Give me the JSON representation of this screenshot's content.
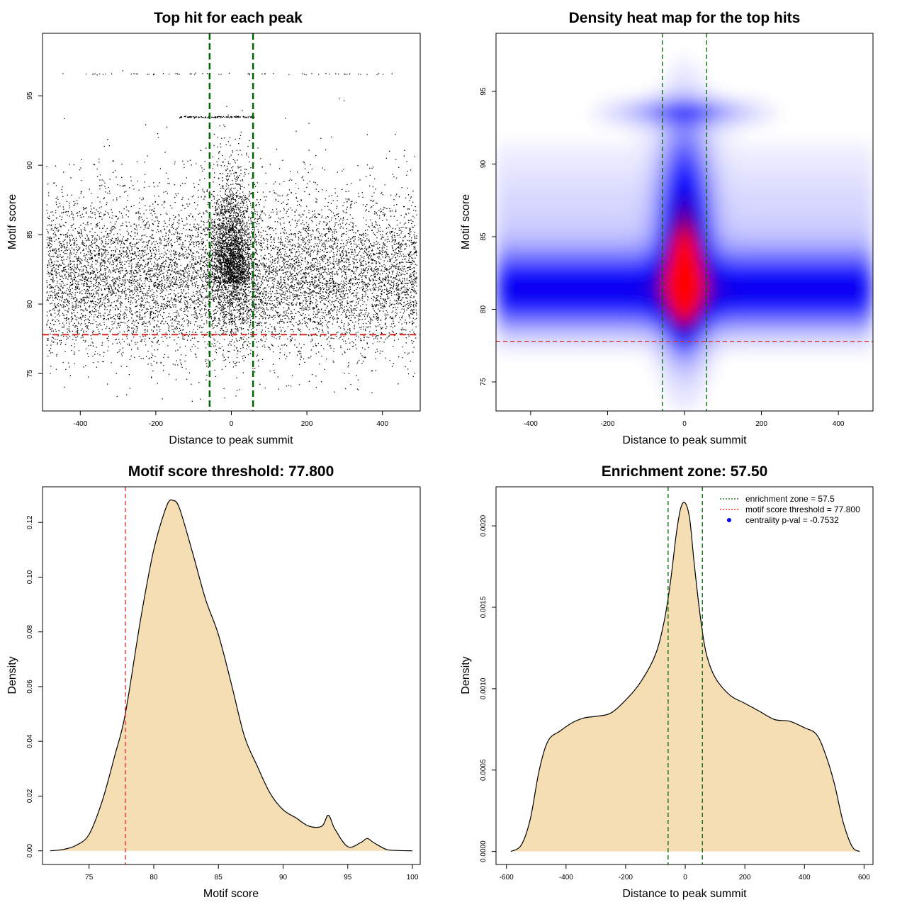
{
  "figure": {
    "panels": [
      {
        "id": "scatter",
        "title": "Top hit for each peak",
        "xlabel": "Distance to peak summit",
        "ylabel": "Motif score"
      },
      {
        "id": "heatmap",
        "title": "Density heat map for the top hits",
        "xlabel": "Distance to peak summit",
        "ylabel": "Motif score"
      },
      {
        "id": "score_density",
        "title": "Motif score threshold: 77.800",
        "xlabel": "Motif score",
        "ylabel": "Density"
      },
      {
        "id": "dist_density",
        "title": "Enrichment zone: 57.50",
        "xlabel": "Distance to peak summit",
        "ylabel": "Density"
      }
    ],
    "legend": [
      {
        "label": "enrichment zone = 57.5",
        "color": "#006400",
        "style": "dotted-line"
      },
      {
        "label": "motif score threshold = 77.800",
        "color": "#ff0000",
        "style": "dotted-line"
      },
      {
        "label": "centrality p-val = -0.7532",
        "color": "#0000ff",
        "style": "point"
      }
    ]
  },
  "chart_data": [
    {
      "type": "scatter",
      "title": "Top hit for each peak",
      "xlabel": "Distance to peak summit",
      "ylabel": "Motif score",
      "xlim": [
        -500,
        500
      ],
      "ylim": [
        72.3,
        99.5
      ],
      "xticks": [
        "-400",
        "-200",
        "0",
        "200",
        "400"
      ],
      "yticks": [
        "75",
        "80",
        "85",
        "90",
        "95"
      ],
      "xtick_values": [
        -400,
        -200,
        0,
        200,
        400
      ],
      "ytick_values": [
        75,
        80,
        85,
        90,
        95
      ],
      "vlines": {
        "values": [
          -57.5,
          57.5
        ],
        "color": "#006400"
      },
      "hline": {
        "value": 77.8,
        "color": "#dd2222"
      },
      "point_color": "#000000",
      "approx_points": 12000
    },
    {
      "type": "heatmap",
      "title": "Density heat map for the top hits",
      "xlabel": "Distance to peak summit",
      "ylabel": "Motif score",
      "xlim": [
        -490,
        490
      ],
      "ylim": [
        73,
        99
      ],
      "xticks": [
        "-400",
        "-200",
        "0",
        "200",
        "400"
      ],
      "yticks": [
        "75",
        "80",
        "85",
        "90",
        "95"
      ],
      "xtick_values": [
        -400,
        -200,
        0,
        200,
        400
      ],
      "ytick_values": [
        75,
        80,
        85,
        90,
        95
      ],
      "vlines": {
        "values": [
          -57.5,
          57.5
        ],
        "color": "#006400"
      },
      "hline": {
        "value": 77.8,
        "color": "#dd2222"
      },
      "colors": {
        "low": "#ffffff",
        "mid": "#0000ff",
        "high": "#ff0000"
      },
      "peak": {
        "x": 0,
        "y": 82
      }
    },
    {
      "type": "area",
      "title": "Motif score threshold: 77.800",
      "xlabel": "Motif score",
      "ylabel": "Density",
      "xlim": [
        71.4,
        100.6
      ],
      "ylim": [
        -0.005,
        0.133
      ],
      "xticks": [
        "75",
        "80",
        "85",
        "90",
        "95",
        "100"
      ],
      "yticks": [
        "0.00",
        "0.02",
        "0.04",
        "0.06",
        "0.08",
        "0.10",
        "0.12"
      ],
      "xtick_values": [
        75,
        80,
        85,
        90,
        95,
        100
      ],
      "ytick_values": [
        0,
        0.02,
        0.04,
        0.06,
        0.08,
        0.1,
        0.12
      ],
      "fill": "#f5deb3",
      "vline": {
        "value": 77.8,
        "color": "#dd2222"
      },
      "x": [
        72,
        73,
        74,
        75,
        76,
        77,
        77.8,
        79,
        80,
        81,
        81.5,
        82,
        83,
        84,
        85,
        86,
        87,
        88,
        89,
        90,
        91,
        92,
        93,
        93.5,
        94,
        95,
        96,
        96.5,
        97,
        98,
        99,
        100
      ],
      "y": [
        0,
        0.0005,
        0.002,
        0.006,
        0.018,
        0.035,
        0.05,
        0.085,
        0.11,
        0.126,
        0.128,
        0.125,
        0.109,
        0.092,
        0.079,
        0.061,
        0.042,
        0.031,
        0.021,
        0.015,
        0.012,
        0.009,
        0.009,
        0.013,
        0.008,
        0.0015,
        0.003,
        0.0045,
        0.003,
        0.0005,
        0.0001,
        0
      ]
    },
    {
      "type": "area",
      "title": "Enrichment zone: 57.50",
      "xlabel": "Distance to peak summit",
      "ylabel": "Density",
      "xlim": [
        -635,
        630
      ],
      "ylim": [
        -8e-05,
        0.00224
      ],
      "xticks": [
        "-600",
        "-400",
        "-200",
        "0",
        "200",
        "400",
        "600"
      ],
      "yticks": [
        "0.0000",
        "0.0005",
        "0.0010",
        "0.0015",
        "0.0020"
      ],
      "xtick_values": [
        -600,
        -400,
        -200,
        0,
        200,
        400,
        600
      ],
      "ytick_values": [
        0,
        0.0005,
        0.001,
        0.0015,
        0.002
      ],
      "fill": "#f5deb3",
      "vlines": {
        "values": [
          -57.5,
          57.5
        ],
        "color": "#006400"
      },
      "x": [
        -585,
        -550,
        -520,
        -490,
        -460,
        -420,
        -380,
        -340,
        -300,
        -250,
        -200,
        -150,
        -100,
        -70,
        -50,
        -30,
        -15,
        0,
        15,
        30,
        50,
        70,
        100,
        150,
        200,
        250,
        300,
        350,
        400,
        440,
        470,
        500,
        530,
        560,
        585
      ],
      "y": [
        0,
        4e-05,
        0.0002,
        0.0005,
        0.00068,
        0.00074,
        0.00079,
        0.00082,
        0.00083,
        0.00085,
        0.00093,
        0.00104,
        0.00121,
        0.00142,
        0.00165,
        0.00195,
        0.00211,
        0.00214,
        0.00204,
        0.00177,
        0.00145,
        0.00122,
        0.00107,
        0.00096,
        0.00091,
        0.00086,
        0.00081,
        0.0008,
        0.00076,
        0.00072,
        0.0006,
        0.00042,
        0.00018,
        3e-05,
        0
      ]
    }
  ]
}
